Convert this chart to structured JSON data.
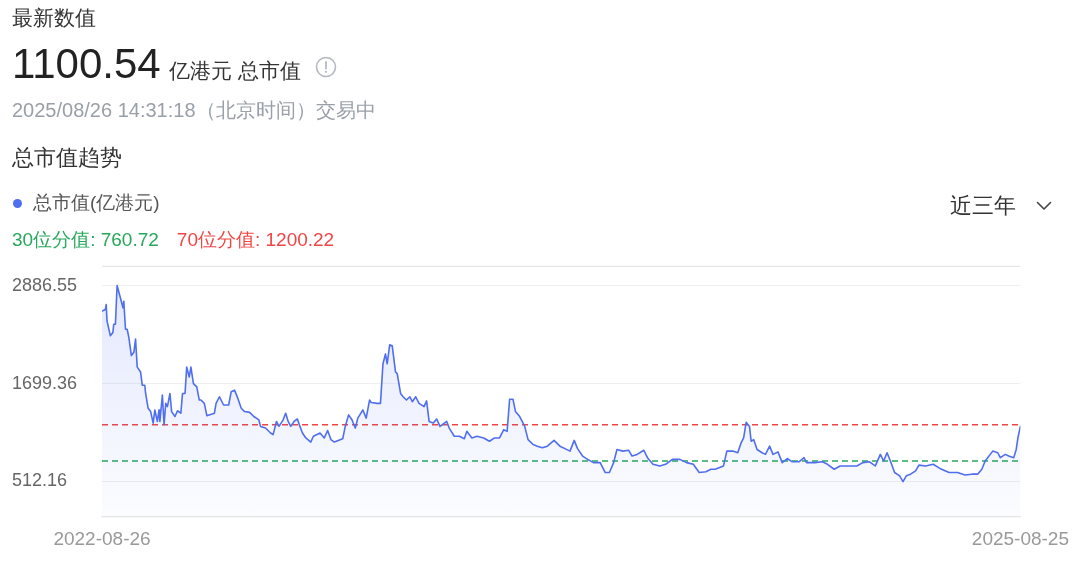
{
  "chart_data": {
    "type": "area",
    "title": "总市值趋势",
    "annotations": [
      "最新数值",
      "1100.54",
      "亿港元 总市值",
      "2025/08/26 14:31:18（北京时间）交易中",
      "近三年"
    ],
    "x": [
      "2022-08-26",
      "2022-08-30",
      "2022-08-31",
      "2022-09-01",
      "2022-09-05",
      "2022-09-08",
      "2022-09-09",
      "2022-09-11",
      "2022-09-13",
      "2022-09-17",
      "2022-09-20",
      "2022-09-21",
      "2022-09-23",
      "2022-09-25",
      "2022-09-27",
      "2022-09-30",
      "2022-10-03",
      "2022-10-05",
      "2022-10-07",
      "2022-10-11",
      "2022-10-13",
      "2022-10-16",
      "2022-10-17",
      "2022-10-20",
      "2022-10-23",
      "2022-10-26",
      "2022-10-28",
      "2022-10-31",
      "2022-11-02",
      "2022-11-03",
      "2022-11-06",
      "2022-11-08",
      "2022-11-10",
      "2022-11-12",
      "2022-11-15",
      "2022-11-17",
      "2022-11-21",
      "2022-11-24",
      "2022-11-28",
      "2022-11-30",
      "2022-12-03",
      "2022-12-05",
      "2022-12-08",
      "2022-12-10",
      "2022-12-13",
      "2022-12-17",
      "2022-12-20",
      "2022-12-22",
      "2022-12-26",
      "2022-12-29",
      "2023-01-07",
      "2023-01-09",
      "2023-01-13",
      "2023-01-18",
      "2023-01-24",
      "2023-01-27",
      "2023-01-31",
      "2023-02-04",
      "2023-02-08",
      "2023-02-12",
      "2023-02-18",
      "2023-02-23",
      "2023-03-01",
      "2023-03-03",
      "2023-03-09",
      "2023-03-15",
      "2023-03-18",
      "2023-03-22",
      "2023-03-25",
      "2023-03-30",
      "2023-04-02",
      "2023-04-05",
      "2023-04-08",
      "2023-04-12",
      "2023-04-16",
      "2023-04-19",
      "2023-04-22",
      "2023-04-26",
      "2023-05-02",
      "2023-05-05",
      "2023-05-13",
      "2023-05-18",
      "2023-05-22",
      "2023-05-26",
      "2023-05-30",
      "2023-06-09",
      "2023-06-12",
      "2023-06-16",
      "2023-06-20",
      "2023-06-24",
      "2023-06-27",
      "2023-07-03",
      "2023-07-07",
      "2023-07-11",
      "2023-07-13",
      "2023-07-20",
      "2023-07-24",
      "2023-07-27",
      "2023-07-30",
      "2023-08-01",
      "2023-08-04",
      "2023-08-07",
      "2023-08-11",
      "2023-08-13",
      "2023-08-17",
      "2023-08-20",
      "2023-08-24",
      "2023-08-28",
      "2023-08-31",
      "2023-09-04",
      "2023-09-08",
      "2023-09-14",
      "2023-09-17",
      "2023-09-20",
      "2023-09-25",
      "2023-09-29",
      "2023-10-03",
      "2023-10-11",
      "2023-10-14",
      "2023-10-20",
      "2023-10-26",
      "2023-11-01",
      "2023-11-04",
      "2023-11-10",
      "2023-11-16",
      "2023-11-24",
      "2023-12-01",
      "2023-12-07",
      "2023-12-13",
      "2023-12-18",
      "2023-12-22",
      "2023-12-25",
      "2023-12-29",
      "2024-01-01",
      "2024-01-06",
      "2024-01-12",
      "2024-01-16",
      "2024-01-22",
      "2024-01-27",
      "2024-02-02",
      "2024-02-08",
      "2024-02-16",
      "2024-02-23",
      "2024-02-29",
      "2024-03-06",
      "2024-03-11",
      "2024-03-15",
      "2024-03-21",
      "2024-03-27",
      "2024-04-03",
      "2024-04-11",
      "2024-04-17",
      "2024-04-22",
      "2024-04-27",
      "2024-05-01",
      "2024-05-08",
      "2024-05-15",
      "2024-05-19",
      "2024-05-25",
      "2024-06-02",
      "2024-06-07",
      "2024-06-13",
      "2024-06-21",
      "2024-06-28",
      "2024-07-06",
      "2024-07-15",
      "2024-07-23",
      "2024-07-31",
      "2024-08-07",
      "2024-08-15",
      "2024-08-21",
      "2024-08-26",
      "2024-09-05",
      "2024-09-09",
      "2024-09-16",
      "2024-09-22",
      "2024-09-26",
      "2024-09-29",
      "2024-10-02",
      "2024-10-06",
      "2024-10-08",
      "2024-10-11",
      "2024-10-15",
      "2024-10-21",
      "2024-10-25",
      "2024-10-30",
      "2024-11-03",
      "2024-11-09",
      "2024-11-14",
      "2024-11-20",
      "2024-11-26",
      "2024-12-04",
      "2024-12-10",
      "2024-12-13",
      "2024-12-23",
      "2025-01-01",
      "2025-01-07",
      "2025-01-15",
      "2025-01-22",
      "2025-02-01",
      "2025-02-11",
      "2025-02-18",
      "2025-02-26",
      "2025-03-05",
      "2025-03-11",
      "2025-03-15",
      "2025-03-19",
      "2025-03-23",
      "2025-03-28",
      "2025-04-03",
      "2025-04-07",
      "2025-04-11",
      "2025-04-16",
      "2025-04-22",
      "2025-04-26",
      "2025-05-04",
      "2025-05-13",
      "2025-05-21",
      "2025-06-01",
      "2025-06-11",
      "2025-06-20",
      "2025-06-28",
      "2025-07-05",
      "2025-07-10",
      "2025-07-14",
      "2025-07-23",
      "2025-07-29",
      "2025-08-01",
      "2025-08-07",
      "2025-08-11",
      "2025-08-17",
      "2025-08-20",
      "2025-08-22",
      "2025-08-25"
    ],
    "series": [
      {
        "name": "总市值(亿港元)",
        "color": "#4f6ef0",
        "values": [
          2580,
          2600,
          2660,
          2460,
          2280,
          2320,
          2420,
          2420,
          2890,
          2740,
          2620,
          2700,
          2360,
          2360,
          2260,
          2040,
          2080,
          2240,
          1900,
          1840,
          1680,
          1680,
          1580,
          1400,
          1360,
          1220,
          1380,
          1240,
          1380,
          1240,
          1560,
          1200,
          1460,
          1420,
          1580,
          1360,
          1300,
          1370,
          1340,
          1580,
          1580,
          1900,
          1780,
          1900,
          1700,
          1660,
          1500,
          1500,
          1460,
          1310,
          1340,
          1460,
          1540,
          1440,
          1440,
          1600,
          1620,
          1520,
          1400,
          1360,
          1350,
          1300,
          1260,
          1180,
          1160,
          1100,
          1080,
          1240,
          1180,
          1260,
          1340,
          1240,
          1180,
          1240,
          1270,
          1180,
          1100,
          1040,
          990,
          1060,
          1100,
          1040,
          1130,
          1020,
          990,
          1030,
          1180,
          1320,
          1260,
          1160,
          1280,
          1380,
          1280,
          1500,
          1470,
          1460,
          1460,
          1940,
          2060,
          1940,
          2170,
          2160,
          1840,
          1820,
          1580,
          1540,
          1500,
          1540,
          1480,
          1540,
          1460,
          1420,
          1490,
          1240,
          1220,
          1270,
          1180,
          1240,
          1160,
          1060,
          1060,
          1030,
          1120,
          1040,
          1060,
          1040,
          1000,
          1040,
          1040,
          1140,
          1120,
          1510,
          1510,
          1360,
          1300,
          1180,
          1020,
          960,
          940,
          920,
          940,
          1010,
          940,
          910,
          880,
          1010,
          910,
          820,
          780,
          740,
          740,
          620,
          620,
          740,
          900,
          880,
          890,
          820,
          840,
          890,
          790,
          720,
          700,
          720,
          780,
          780,
          740,
          720,
          620,
          630,
          660,
          660,
          700,
          880,
          880,
          860,
          980,
          1040,
          1230,
          1180,
          1000,
          1020,
          900,
          860,
          840,
          940,
          840,
          870,
          740,
          790,
          750,
          750,
          800,
          740,
          740,
          750,
          720,
          660,
          700,
          700,
          700,
          740,
          750,
          700,
          840,
          760,
          860,
          760,
          620,
          580,
          510,
          580,
          600,
          640,
          710,
          700,
          720,
          670,
          620,
          620,
          590,
          600,
          600,
          660,
          760,
          880,
          860,
          800,
          840,
          820,
          800,
          900,
          1040,
          1180
        ]
      }
    ],
    "xlim": [
      "2022-08-26",
      "2025-08-25"
    ],
    "xticks": [
      "2022-08-26",
      "2025-08-25"
    ],
    "ylim": [
      80,
      3130
    ],
    "yticks": [
      512.16,
      1699.36,
      2886.55
    ],
    "grid": "y",
    "legend": "top left",
    "marker": "none",
    "ref_lines": [
      {
        "axis": "y",
        "value": 760.72,
        "label": "30位分值: 760.72",
        "color": "#27a85a",
        "line_style": "dashed"
      },
      {
        "axis": "y",
        "value": 1200.22,
        "label": "70位分值: 1200.22",
        "color": "#f04545",
        "line_style": "dashed"
      }
    ]
  }
}
